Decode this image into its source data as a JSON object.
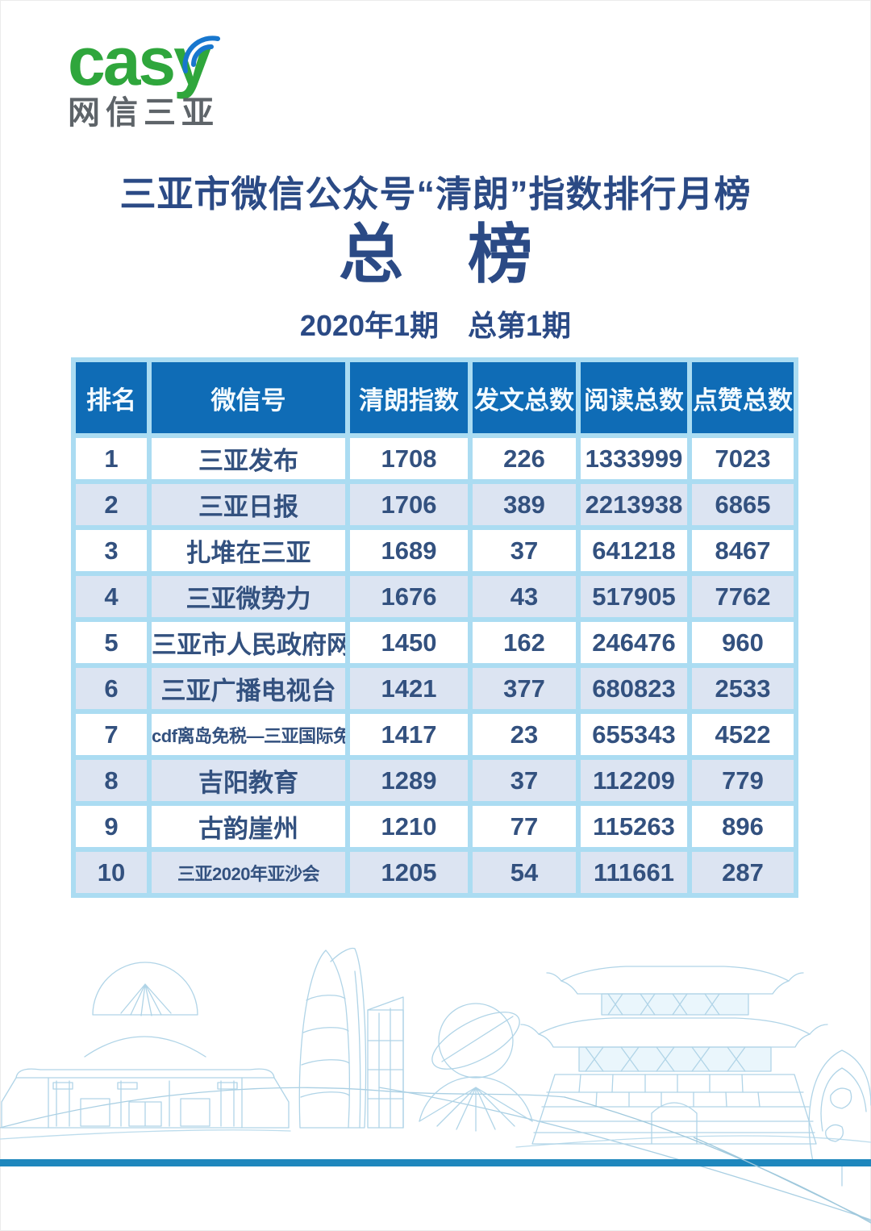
{
  "logo": {
    "brand": "casy",
    "subtitle": "网信三亚",
    "wifi_icon": "wifi-signal-icon"
  },
  "header": {
    "title": "三亚市微信公众号“清朗”指数排行月榜",
    "main_heading": "总　榜",
    "issue_line": "2020年1期　总第1期"
  },
  "table": {
    "headers": [
      "排名",
      "微信号",
      "清朗指数",
      "发文总数",
      "阅读总数",
      "点赞总数"
    ],
    "rows": [
      [
        "1",
        "三亚发布",
        "1708",
        "226",
        "1333999",
        "7023"
      ],
      [
        "2",
        "三亚日报",
        "1706",
        "389",
        "2213938",
        "6865"
      ],
      [
        "3",
        "扎堆在三亚",
        "1689",
        "37",
        "641218",
        "8467"
      ],
      [
        "4",
        "三亚微势力",
        "1676",
        "43",
        "517905",
        "7762"
      ],
      [
        "5",
        "三亚市人民政府网",
        "1450",
        "162",
        "246476",
        "960"
      ],
      [
        "6",
        "三亚广播电视台",
        "1421",
        "377",
        "680823",
        "2533"
      ],
      [
        "7",
        "cdf离岛免税—三亚国际免税城",
        "1417",
        "23",
        "655343",
        "4522"
      ],
      [
        "8",
        "吉阳教育",
        "1289",
        "37",
        "112209",
        "779"
      ],
      [
        "9",
        "古韵崖州",
        "1210",
        "77",
        "115263",
        "896"
      ],
      [
        "10",
        "三亚2020年亚沙会",
        "1205",
        "54",
        "111661",
        "287"
      ]
    ]
  },
  "footer": {
    "illustration": "sanya-landmarks-line-art"
  },
  "colors": {
    "brand_green": "#2fa63c",
    "logo_gray": "#5e6469",
    "wifi_blue": "#1877ce",
    "title_blue": "#2b4a85",
    "header_bg": "#0f6cb6",
    "grid_cyan": "#abdcf2",
    "row_alt_bg": "#dce4f2",
    "cell_text": "#33517f",
    "bottom_stripe": "#1e87bd",
    "sketch_stroke": "#b0d4e7"
  }
}
